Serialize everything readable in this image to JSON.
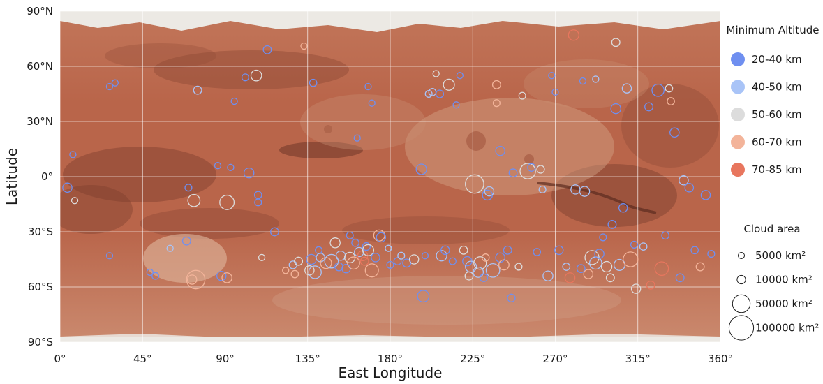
{
  "chart_data": {
    "type": "scatter",
    "title": "",
    "xlabel": "East Longitude",
    "ylabel": "Latitude",
    "xlim": [
      0,
      360
    ],
    "ylim": [
      -90,
      90
    ],
    "grid": true,
    "background": "Mars surface map (equirectangular)",
    "x_ticks": [
      {
        "value": 0,
        "label": "0°"
      },
      {
        "value": 45,
        "label": "45°"
      },
      {
        "value": 90,
        "label": "90°"
      },
      {
        "value": 135,
        "label": "135°"
      },
      {
        "value": 180,
        "label": "180°"
      },
      {
        "value": 225,
        "label": "225°"
      },
      {
        "value": 270,
        "label": "270°"
      },
      {
        "value": 315,
        "label": "315°"
      },
      {
        "value": 360,
        "label": "360°"
      }
    ],
    "y_ticks": [
      {
        "value": 90,
        "label": "90°N"
      },
      {
        "value": 60,
        "label": "60°N"
      },
      {
        "value": 30,
        "label": "30°N"
      },
      {
        "value": 0,
        "label": "0°"
      },
      {
        "value": -30,
        "label": "30°S"
      },
      {
        "value": -60,
        "label": "60°S"
      },
      {
        "value": -90,
        "label": "90°S"
      }
    ],
    "color_legend": {
      "title": "Minimum Altitude",
      "placement": "top-right, outside plot",
      "entries": [
        {
          "label": "20-40 km",
          "color": "#6f8ff0"
        },
        {
          "label": "40-50 km",
          "color": "#a9c4f7"
        },
        {
          "label": "50-60 km",
          "color": "#dcdcdc"
        },
        {
          "label": "60-70 km",
          "color": "#f3b49a"
        },
        {
          "label": "70-85 km",
          "color": "#e8765e"
        }
      ]
    },
    "size_legend": {
      "title": "Cloud area",
      "placement": "bottom-right, outside plot",
      "entries": [
        {
          "label": "5000 km²",
          "area": 5000
        },
        {
          "label": "10000 km²",
          "area": 10000
        },
        {
          "label": "50000 km²",
          "area": 50000
        },
        {
          "label": "100000 km²",
          "area": 100000
        }
      ]
    },
    "size_scale_note": "marker radius proportional to sqrt(cloud area)",
    "points": [
      {
        "lon": 4,
        "lat": -6,
        "area": 12000,
        "alt": 0
      },
      {
        "lon": 8,
        "lat": -13,
        "area": 5000,
        "alt": 2
      },
      {
        "lon": 7,
        "lat": 12,
        "area": 5000,
        "alt": 0
      },
      {
        "lon": 27,
        "lat": 49,
        "area": 5000,
        "alt": 0
      },
      {
        "lon": 30,
        "lat": 51,
        "area": 5000,
        "alt": 0
      },
      {
        "lon": 27,
        "lat": -43,
        "area": 5000,
        "alt": 0
      },
      {
        "lon": 49,
        "lat": -52,
        "area": 5000,
        "alt": 0
      },
      {
        "lon": 52,
        "lat": -54,
        "area": 6000,
        "alt": 0
      },
      {
        "lon": 60,
        "lat": -39,
        "area": 5000,
        "alt": 1
      },
      {
        "lon": 70,
        "lat": -6,
        "area": 6000,
        "alt": 0
      },
      {
        "lon": 69,
        "lat": -35,
        "area": 9000,
        "alt": 0
      },
      {
        "lon": 73,
        "lat": -13,
        "area": 22000,
        "alt": 2
      },
      {
        "lon": 74,
        "lat": -56,
        "area": 55000,
        "alt": 3
      },
      {
        "lon": 72,
        "lat": -56,
        "area": 12000,
        "alt": 3
      },
      {
        "lon": 75,
        "lat": 47,
        "area": 9000,
        "alt": 1
      },
      {
        "lon": 86,
        "lat": 6,
        "area": 5000,
        "alt": 0
      },
      {
        "lon": 88,
        "lat": -54,
        "area": 12000,
        "alt": 0
      },
      {
        "lon": 91,
        "lat": -14,
        "area": 32000,
        "alt": 2
      },
      {
        "lon": 91,
        "lat": -55,
        "area": 14000,
        "alt": 3
      },
      {
        "lon": 93,
        "lat": 5,
        "area": 5000,
        "alt": 0
      },
      {
        "lon": 95,
        "lat": 41,
        "area": 5000,
        "alt": 0
      },
      {
        "lon": 101,
        "lat": 54,
        "area": 6000,
        "alt": 0
      },
      {
        "lon": 103,
        "lat": 2,
        "area": 14000,
        "alt": 0
      },
      {
        "lon": 107,
        "lat": 55,
        "area": 17000,
        "alt": 2
      },
      {
        "lon": 108,
        "lat": -10,
        "area": 7000,
        "alt": 0
      },
      {
        "lon": 108,
        "lat": -14,
        "area": 6000,
        "alt": 0
      },
      {
        "lon": 110,
        "lat": -44,
        "area": 5000,
        "alt": 2
      },
      {
        "lon": 113,
        "lat": 69,
        "area": 9000,
        "alt": 0
      },
      {
        "lon": 117,
        "lat": -30,
        "area": 9000,
        "alt": 0
      },
      {
        "lon": 123,
        "lat": -51,
        "area": 5000,
        "alt": 3
      },
      {
        "lon": 127,
        "lat": -48,
        "area": 8000,
        "alt": 1
      },
      {
        "lon": 128,
        "lat": -53,
        "area": 7000,
        "alt": 3
      },
      {
        "lon": 130,
        "lat": -46,
        "area": 9000,
        "alt": 2
      },
      {
        "lon": 133,
        "lat": 71,
        "area": 5000,
        "alt": 3
      },
      {
        "lon": 136,
        "lat": -51,
        "area": 12000,
        "alt": 2
      },
      {
        "lon": 137,
        "lat": -45,
        "area": 14000,
        "alt": 0
      },
      {
        "lon": 139,
        "lat": -52,
        "area": 24000,
        "alt": 1
      },
      {
        "lon": 141,
        "lat": -40,
        "area": 6000,
        "alt": 0
      },
      {
        "lon": 142,
        "lat": -44,
        "area": 10000,
        "alt": 1
      },
      {
        "lon": 138,
        "lat": 51,
        "area": 7000,
        "alt": 0
      },
      {
        "lon": 145,
        "lat": -47,
        "area": 18000,
        "alt": 3
      },
      {
        "lon": 148,
        "lat": -46,
        "area": 28000,
        "alt": 1
      },
      {
        "lon": 150,
        "lat": -36,
        "area": 14000,
        "alt": 2
      },
      {
        "lon": 152,
        "lat": -49,
        "area": 9000,
        "alt": 0
      },
      {
        "lon": 153,
        "lat": -43,
        "area": 12000,
        "alt": 1
      },
      {
        "lon": 156,
        "lat": -50,
        "area": 10000,
        "alt": 0
      },
      {
        "lon": 158,
        "lat": -44,
        "area": 16000,
        "alt": 2
      },
      {
        "lon": 160,
        "lat": -47,
        "area": 22000,
        "alt": 3
      },
      {
        "lon": 161,
        "lat": -36,
        "area": 7000,
        "alt": 0
      },
      {
        "lon": 163,
        "lat": -41,
        "area": 12000,
        "alt": 1
      },
      {
        "lon": 165,
        "lat": -43,
        "area": 14000,
        "alt": 4
      },
      {
        "lon": 166,
        "lat": -46,
        "area": 9000,
        "alt": 4
      },
      {
        "lon": 167,
        "lat": -38,
        "area": 8000,
        "alt": 0
      },
      {
        "lon": 168,
        "lat": -40,
        "area": 18000,
        "alt": 2
      },
      {
        "lon": 170,
        "lat": -51,
        "area": 26000,
        "alt": 3
      },
      {
        "lon": 172,
        "lat": -44,
        "area": 10000,
        "alt": 0
      },
      {
        "lon": 174,
        "lat": -32,
        "area": 18000,
        "alt": 3
      },
      {
        "lon": 175,
        "lat": -33,
        "area": 12000,
        "alt": 0
      },
      {
        "lon": 158,
        "lat": -32,
        "area": 6000,
        "alt": 0
      },
      {
        "lon": 162,
        "lat": 21,
        "area": 5000,
        "alt": 0
      },
      {
        "lon": 168,
        "lat": 49,
        "area": 5000,
        "alt": 0
      },
      {
        "lon": 170,
        "lat": 40,
        "area": 5000,
        "alt": 0
      },
      {
        "lon": 179,
        "lat": -39,
        "area": 5000,
        "alt": 1
      },
      {
        "lon": 180,
        "lat": -48,
        "area": 6000,
        "alt": 0
      },
      {
        "lon": 184,
        "lat": -46,
        "area": 7000,
        "alt": 0
      },
      {
        "lon": 186,
        "lat": -43,
        "area": 6000,
        "alt": 1
      },
      {
        "lon": 189,
        "lat": -47,
        "area": 9000,
        "alt": 0
      },
      {
        "lon": 193,
        "lat": -45,
        "area": 12000,
        "alt": 2
      },
      {
        "lon": 197,
        "lat": 4,
        "area": 16000,
        "alt": 0
      },
      {
        "lon": 198,
        "lat": -65,
        "area": 20000,
        "alt": 0
      },
      {
        "lon": 199,
        "lat": -43,
        "area": 5000,
        "alt": 0
      },
      {
        "lon": 201,
        "lat": 45,
        "area": 6000,
        "alt": 1
      },
      {
        "lon": 203,
        "lat": 46,
        "area": 7000,
        "alt": 1
      },
      {
        "lon": 205,
        "lat": 56,
        "area": 5000,
        "alt": 2
      },
      {
        "lon": 207,
        "lat": 45,
        "area": 8000,
        "alt": 0
      },
      {
        "lon": 208,
        "lat": -43,
        "area": 16000,
        "alt": 1
      },
      {
        "lon": 210,
        "lat": -40,
        "area": 10000,
        "alt": 0
      },
      {
        "lon": 212,
        "lat": 50,
        "area": 18000,
        "alt": 2
      },
      {
        "lon": 214,
        "lat": -46,
        "area": 6000,
        "alt": 0
      },
      {
        "lon": 216,
        "lat": 39,
        "area": 5000,
        "alt": 0
      },
      {
        "lon": 218,
        "lat": 55,
        "area": 5000,
        "alt": 0
      },
      {
        "lon": 220,
        "lat": -40,
        "area": 9000,
        "alt": 2
      },
      {
        "lon": 222,
        "lat": -46,
        "area": 12000,
        "alt": 0
      },
      {
        "lon": 223,
        "lat": -54,
        "area": 9000,
        "alt": 2
      },
      {
        "lon": 224,
        "lat": -49,
        "area": 18000,
        "alt": 1
      },
      {
        "lon": 226,
        "lat": -4,
        "area": 55000,
        "alt": 2
      },
      {
        "lon": 228,
        "lat": -52,
        "area": 15000,
        "alt": 1
      },
      {
        "lon": 229,
        "lat": -47,
        "area": 24000,
        "alt": 2
      },
      {
        "lon": 231,
        "lat": -55,
        "area": 8000,
        "alt": 0
      },
      {
        "lon": 232,
        "lat": -44,
        "area": 7000,
        "alt": 3
      },
      {
        "lon": 233,
        "lat": -10,
        "area": 14000,
        "alt": 0
      },
      {
        "lon": 234,
        "lat": -8,
        "area": 12000,
        "alt": 1
      },
      {
        "lon": 236,
        "lat": -51,
        "area": 28000,
        "alt": 1
      },
      {
        "lon": 238,
        "lat": 50,
        "area": 9000,
        "alt": 3
      },
      {
        "lon": 238,
        "lat": 40,
        "area": 6000,
        "alt": 3
      },
      {
        "lon": 240,
        "lat": 14,
        "area": 12000,
        "alt": 0
      },
      {
        "lon": 240,
        "lat": -44,
        "area": 12000,
        "alt": 0
      },
      {
        "lon": 242,
        "lat": -48,
        "area": 15000,
        "alt": 3
      },
      {
        "lon": 244,
        "lat": -40,
        "area": 9000,
        "alt": 0
      },
      {
        "lon": 246,
        "lat": -66,
        "area": 8000,
        "alt": 0
      },
      {
        "lon": 247,
        "lat": 2,
        "area": 9000,
        "alt": 0
      },
      {
        "lon": 250,
        "lat": -49,
        "area": 6000,
        "alt": 2
      },
      {
        "lon": 252,
        "lat": 44,
        "area": 6000,
        "alt": 2
      },
      {
        "lon": 255,
        "lat": 3,
        "area": 38000,
        "alt": 2
      },
      {
        "lon": 257,
        "lat": 5,
        "area": 8000,
        "alt": 0
      },
      {
        "lon": 260,
        "lat": -41,
        "area": 7000,
        "alt": 0
      },
      {
        "lon": 262,
        "lat": 4,
        "area": 8000,
        "alt": 2
      },
      {
        "lon": 263,
        "lat": -7,
        "area": 6000,
        "alt": 1
      },
      {
        "lon": 266,
        "lat": -54,
        "area": 14000,
        "alt": 1
      },
      {
        "lon": 268,
        "lat": 55,
        "area": 5000,
        "alt": 0
      },
      {
        "lon": 270,
        "lat": 46,
        "area": 5000,
        "alt": 0
      },
      {
        "lon": 272,
        "lat": -40,
        "area": 10000,
        "alt": 0
      },
      {
        "lon": 276,
        "lat": -49,
        "area": 7000,
        "alt": 1
      },
      {
        "lon": 278,
        "lat": -55,
        "area": 14000,
        "alt": 4
      },
      {
        "lon": 280,
        "lat": 77,
        "area": 16000,
        "alt": 4
      },
      {
        "lon": 281,
        "lat": -7,
        "area": 12000,
        "alt": 1
      },
      {
        "lon": 284,
        "lat": -50,
        "area": 9000,
        "alt": 0
      },
      {
        "lon": 285,
        "lat": 52,
        "area": 5000,
        "alt": 0
      },
      {
        "lon": 286,
        "lat": -8,
        "area": 14000,
        "alt": 1
      },
      {
        "lon": 288,
        "lat": -53,
        "area": 12000,
        "alt": 3
      },
      {
        "lon": 290,
        "lat": -44,
        "area": 30000,
        "alt": 2
      },
      {
        "lon": 292,
        "lat": -47,
        "area": 22000,
        "alt": 1
      },
      {
        "lon": 292,
        "lat": 53,
        "area": 5000,
        "alt": 1
      },
      {
        "lon": 294,
        "lat": -42,
        "area": 12000,
        "alt": 0
      },
      {
        "lon": 296,
        "lat": -33,
        "area": 6000,
        "alt": 0
      },
      {
        "lon": 298,
        "lat": -49,
        "area": 16000,
        "alt": 2
      },
      {
        "lon": 300,
        "lat": -55,
        "area": 9000,
        "alt": 2
      },
      {
        "lon": 301,
        "lat": -26,
        "area": 9000,
        "alt": 0
      },
      {
        "lon": 303,
        "lat": 73,
        "area": 9000,
        "alt": 2
      },
      {
        "lon": 303,
        "lat": 37,
        "area": 14000,
        "alt": 0
      },
      {
        "lon": 305,
        "lat": -48,
        "area": 18000,
        "alt": 1
      },
      {
        "lon": 307,
        "lat": -17,
        "area": 10000,
        "alt": 0
      },
      {
        "lon": 309,
        "lat": 48,
        "area": 12000,
        "alt": 1
      },
      {
        "lon": 311,
        "lat": -45,
        "area": 34000,
        "alt": 3
      },
      {
        "lon": 313,
        "lat": -37,
        "area": 6000,
        "alt": 0
      },
      {
        "lon": 314,
        "lat": -61,
        "area": 12000,
        "alt": 2
      },
      {
        "lon": 318,
        "lat": -38,
        "area": 7000,
        "alt": 1
      },
      {
        "lon": 321,
        "lat": 38,
        "area": 9000,
        "alt": 0
      },
      {
        "lon": 322,
        "lat": -59,
        "area": 9000,
        "alt": 4
      },
      {
        "lon": 326,
        "lat": 47,
        "area": 22000,
        "alt": 0
      },
      {
        "lon": 328,
        "lat": -50,
        "area": 28000,
        "alt": 4
      },
      {
        "lon": 330,
        "lat": -32,
        "area": 7000,
        "alt": 0
      },
      {
        "lon": 332,
        "lat": 48,
        "area": 7000,
        "alt": 2
      },
      {
        "lon": 333,
        "lat": 41,
        "area": 7000,
        "alt": 3
      },
      {
        "lon": 335,
        "lat": 24,
        "area": 12000,
        "alt": 0
      },
      {
        "lon": 338,
        "lat": -55,
        "area": 9000,
        "alt": 0
      },
      {
        "lon": 340,
        "lat": -2,
        "area": 12000,
        "alt": 1
      },
      {
        "lon": 343,
        "lat": -6,
        "area": 10000,
        "alt": 0
      },
      {
        "lon": 346,
        "lat": -40,
        "area": 7000,
        "alt": 0
      },
      {
        "lon": 349,
        "lat": -49,
        "area": 9000,
        "alt": 3
      },
      {
        "lon": 352,
        "lat": -10,
        "area": 12000,
        "alt": 0
      },
      {
        "lon": 355,
        "lat": -42,
        "area": 6000,
        "alt": 0
      }
    ]
  },
  "colors": {
    "mars_base": "#b9654a",
    "mars_dark": "#8e4a36",
    "mars_light": "#d4a487",
    "polar_cap": "#ece9e4",
    "gridline": "#ffffff"
  }
}
